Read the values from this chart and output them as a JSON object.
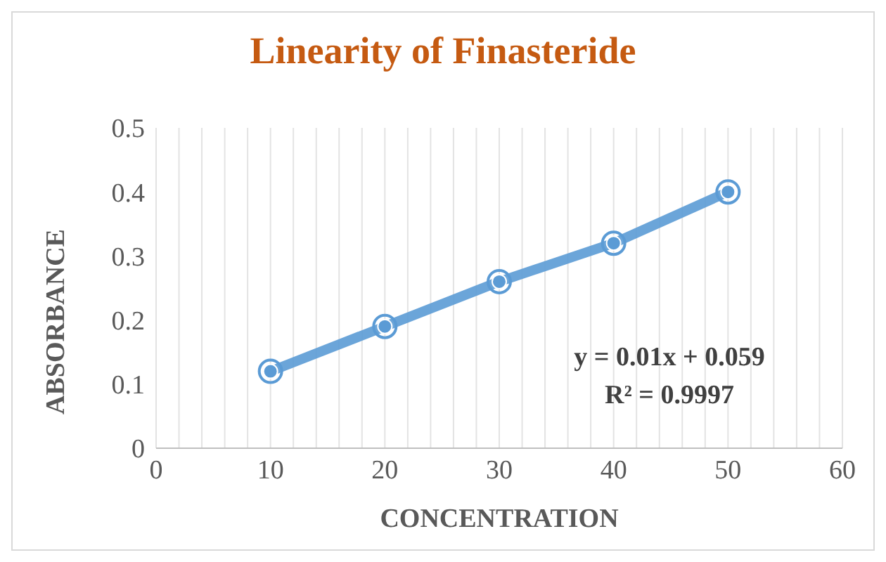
{
  "chart_data": {
    "type": "line",
    "title": "Linearity of Finasteride",
    "xlabel": "CONCENTRATION",
    "ylabel": "ABSORBANCE",
    "x": [
      10,
      20,
      30,
      40,
      50
    ],
    "series": [
      {
        "color": "#5b9bd5",
        "values": [
          0.12,
          0.19,
          0.26,
          0.32,
          0.4
        ]
      }
    ],
    "marker": "circle",
    "line_style": "solid",
    "grid": "x",
    "xlim": [
      0,
      60
    ],
    "xticks": [
      0,
      {
        "value": 2,
        "label": null
      },
      {
        "value": 4,
        "label": null
      },
      {
        "value": 6,
        "label": null
      },
      {
        "value": 8,
        "label": null
      },
      10,
      {
        "value": 12,
        "label": null
      },
      {
        "value": 14,
        "label": null
      },
      {
        "value": 16,
        "label": null
      },
      {
        "value": 18,
        "label": null
      },
      20,
      {
        "value": 22,
        "label": null
      },
      {
        "value": 24,
        "label": null
      },
      {
        "value": 26,
        "label": null
      },
      {
        "value": 28,
        "label": null
      },
      30,
      {
        "value": 32,
        "label": null
      },
      {
        "value": 34,
        "label": null
      },
      {
        "value": 36,
        "label": null
      },
      {
        "value": 38,
        "label": null
      },
      40,
      {
        "value": 42,
        "label": null
      },
      {
        "value": 44,
        "label": null
      },
      {
        "value": 46,
        "label": null
      },
      {
        "value": 48,
        "label": null
      },
      50,
      {
        "value": 52,
        "label": null
      },
      {
        "value": 54,
        "label": null
      },
      {
        "value": 56,
        "label": null
      },
      {
        "value": 58,
        "label": null
      },
      60
    ],
    "ylim": [
      0,
      0.5
    ],
    "yticks": [
      0,
      0.1,
      0.2,
      0.3,
      0.4,
      0.5
    ],
    "annotations": [
      "y = 0.01x + 0.059",
      "R² = 0.9997"
    ]
  }
}
